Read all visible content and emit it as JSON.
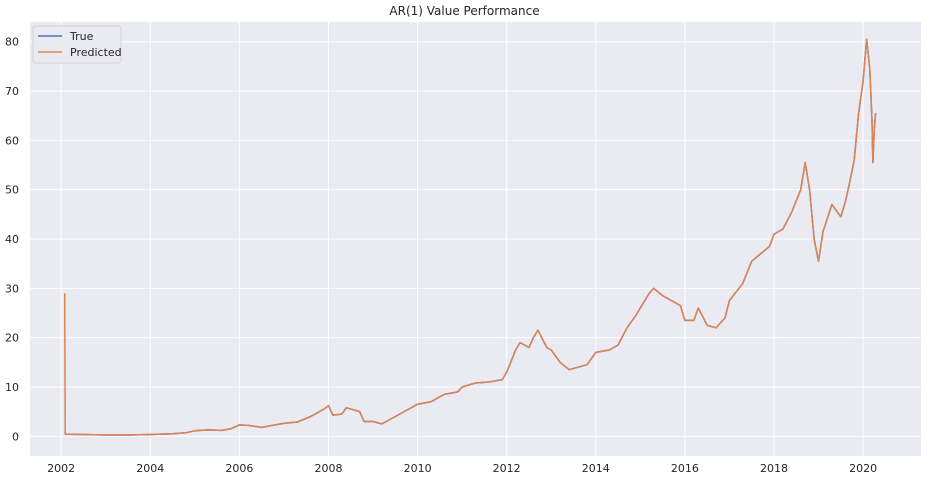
{
  "chart_data": {
    "type": "line",
    "title": "AR(1) Value Performance",
    "xlabel": "",
    "ylabel": "",
    "xlim": [
      2001.3,
      2021.3
    ],
    "ylim": [
      -4,
      84
    ],
    "x_ticks": [
      2002,
      2004,
      2006,
      2008,
      2010,
      2012,
      2014,
      2016,
      2018,
      2020
    ],
    "y_ticks": [
      0,
      10,
      20,
      30,
      40,
      50,
      60,
      70,
      80
    ],
    "grid": true,
    "legend": "top-left",
    "colors": {
      "background": "#eaeaf2",
      "grid": "#ffffff",
      "true": "#4c72b0",
      "predicted": "#dd8452"
    },
    "series": [
      {
        "name": "True",
        "points": [
          [
            2002.08,
            0.4
          ],
          [
            2002.5,
            0.35
          ],
          [
            2003.0,
            0.25
          ],
          [
            2003.5,
            0.25
          ],
          [
            2004.0,
            0.35
          ],
          [
            2004.5,
            0.5
          ],
          [
            2004.8,
            0.7
          ],
          [
            2005.0,
            1.1
          ],
          [
            2005.3,
            1.3
          ],
          [
            2005.6,
            1.2
          ],
          [
            2005.8,
            1.5
          ],
          [
            2006.0,
            2.3
          ],
          [
            2006.2,
            2.2
          ],
          [
            2006.5,
            1.8
          ],
          [
            2006.8,
            2.3
          ],
          [
            2007.0,
            2.6
          ],
          [
            2007.3,
            2.9
          ],
          [
            2007.6,
            4.0
          ],
          [
            2007.9,
            5.5
          ],
          [
            2008.0,
            6.2
          ],
          [
            2008.1,
            4.3
          ],
          [
            2008.3,
            4.5
          ],
          [
            2008.4,
            5.8
          ],
          [
            2008.7,
            5.0
          ],
          [
            2008.8,
            3.0
          ],
          [
            2009.0,
            3.0
          ],
          [
            2009.2,
            2.5
          ],
          [
            2009.5,
            4.0
          ],
          [
            2009.8,
            5.5
          ],
          [
            2010.0,
            6.5
          ],
          [
            2010.3,
            7.0
          ],
          [
            2010.6,
            8.5
          ],
          [
            2010.9,
            9.0
          ],
          [
            2011.0,
            10.0
          ],
          [
            2011.3,
            10.8
          ],
          [
            2011.6,
            11.0
          ],
          [
            2011.9,
            11.5
          ],
          [
            2012.0,
            13.0
          ],
          [
            2012.2,
            17.5
          ],
          [
            2012.3,
            19.0
          ],
          [
            2012.5,
            18.0
          ],
          [
            2012.6,
            20.0
          ],
          [
            2012.7,
            21.5
          ],
          [
            2012.9,
            18.0
          ],
          [
            2013.0,
            17.5
          ],
          [
            2013.2,
            15.0
          ],
          [
            2013.4,
            13.5
          ],
          [
            2013.6,
            14.0
          ],
          [
            2013.8,
            14.5
          ],
          [
            2014.0,
            17.0
          ],
          [
            2014.3,
            17.5
          ],
          [
            2014.5,
            18.5
          ],
          [
            2014.7,
            22.0
          ],
          [
            2014.9,
            24.5
          ],
          [
            2015.0,
            26.0
          ],
          [
            2015.2,
            29.0
          ],
          [
            2015.3,
            30.0
          ],
          [
            2015.5,
            28.5
          ],
          [
            2015.7,
            27.5
          ],
          [
            2015.9,
            26.5
          ],
          [
            2016.0,
            23.5
          ],
          [
            2016.2,
            23.5
          ],
          [
            2016.3,
            26.0
          ],
          [
            2016.5,
            22.5
          ],
          [
            2016.7,
            22.0
          ],
          [
            2016.9,
            24.0
          ],
          [
            2017.0,
            27.5
          ],
          [
            2017.3,
            31.0
          ],
          [
            2017.5,
            35.5
          ],
          [
            2017.7,
            37.0
          ],
          [
            2017.9,
            38.5
          ],
          [
            2018.0,
            41.0
          ],
          [
            2018.2,
            42.0
          ],
          [
            2018.4,
            45.5
          ],
          [
            2018.6,
            50.0
          ],
          [
            2018.7,
            55.5
          ],
          [
            2018.8,
            50.0
          ],
          [
            2018.9,
            40.0
          ],
          [
            2019.0,
            35.5
          ],
          [
            2019.1,
            41.5
          ],
          [
            2019.3,
            47.0
          ],
          [
            2019.5,
            44.5
          ],
          [
            2019.6,
            47.5
          ],
          [
            2019.7,
            51.5
          ],
          [
            2019.8,
            56.0
          ],
          [
            2019.9,
            65.5
          ],
          [
            2020.0,
            72.0
          ],
          [
            2020.08,
            80.5
          ],
          [
            2020.15,
            74.5
          ],
          [
            2020.2,
            64.0
          ],
          [
            2020.22,
            55.5
          ],
          [
            2020.25,
            62.0
          ],
          [
            2020.28,
            65.5
          ]
        ]
      },
      {
        "name": "Predicted",
        "points": [
          [
            2002.08,
            29.0
          ],
          [
            2002.09,
            0.4
          ],
          [
            2002.5,
            0.35
          ],
          [
            2003.0,
            0.25
          ],
          [
            2003.5,
            0.25
          ],
          [
            2004.0,
            0.35
          ],
          [
            2004.5,
            0.5
          ],
          [
            2004.8,
            0.7
          ],
          [
            2005.0,
            1.1
          ],
          [
            2005.3,
            1.3
          ],
          [
            2005.6,
            1.2
          ],
          [
            2005.8,
            1.5
          ],
          [
            2006.0,
            2.3
          ],
          [
            2006.2,
            2.2
          ],
          [
            2006.5,
            1.8
          ],
          [
            2006.8,
            2.3
          ],
          [
            2007.0,
            2.6
          ],
          [
            2007.3,
            2.9
          ],
          [
            2007.6,
            4.0
          ],
          [
            2007.9,
            5.5
          ],
          [
            2008.0,
            6.2
          ],
          [
            2008.1,
            4.3
          ],
          [
            2008.3,
            4.5
          ],
          [
            2008.4,
            5.8
          ],
          [
            2008.7,
            5.0
          ],
          [
            2008.8,
            3.0
          ],
          [
            2009.0,
            3.0
          ],
          [
            2009.2,
            2.5
          ],
          [
            2009.5,
            4.0
          ],
          [
            2009.8,
            5.5
          ],
          [
            2010.0,
            6.5
          ],
          [
            2010.3,
            7.0
          ],
          [
            2010.6,
            8.5
          ],
          [
            2010.9,
            9.0
          ],
          [
            2011.0,
            10.0
          ],
          [
            2011.3,
            10.8
          ],
          [
            2011.6,
            11.0
          ],
          [
            2011.9,
            11.5
          ],
          [
            2012.0,
            13.0
          ],
          [
            2012.2,
            17.5
          ],
          [
            2012.3,
            19.0
          ],
          [
            2012.5,
            18.0
          ],
          [
            2012.6,
            20.0
          ],
          [
            2012.7,
            21.5
          ],
          [
            2012.9,
            18.0
          ],
          [
            2013.0,
            17.5
          ],
          [
            2013.2,
            15.0
          ],
          [
            2013.4,
            13.5
          ],
          [
            2013.6,
            14.0
          ],
          [
            2013.8,
            14.5
          ],
          [
            2014.0,
            17.0
          ],
          [
            2014.3,
            17.5
          ],
          [
            2014.5,
            18.5
          ],
          [
            2014.7,
            22.0
          ],
          [
            2014.9,
            24.5
          ],
          [
            2015.0,
            26.0
          ],
          [
            2015.2,
            29.0
          ],
          [
            2015.3,
            30.0
          ],
          [
            2015.5,
            28.5
          ],
          [
            2015.7,
            27.5
          ],
          [
            2015.9,
            26.5
          ],
          [
            2016.0,
            23.5
          ],
          [
            2016.2,
            23.5
          ],
          [
            2016.3,
            26.0
          ],
          [
            2016.5,
            22.5
          ],
          [
            2016.7,
            22.0
          ],
          [
            2016.9,
            24.0
          ],
          [
            2017.0,
            27.5
          ],
          [
            2017.3,
            31.0
          ],
          [
            2017.5,
            35.5
          ],
          [
            2017.7,
            37.0
          ],
          [
            2017.9,
            38.5
          ],
          [
            2018.0,
            41.0
          ],
          [
            2018.2,
            42.0
          ],
          [
            2018.4,
            45.5
          ],
          [
            2018.6,
            50.0
          ],
          [
            2018.7,
            55.5
          ],
          [
            2018.8,
            50.0
          ],
          [
            2018.9,
            40.0
          ],
          [
            2019.0,
            35.5
          ],
          [
            2019.1,
            41.5
          ],
          [
            2019.3,
            47.0
          ],
          [
            2019.5,
            44.5
          ],
          [
            2019.6,
            47.5
          ],
          [
            2019.7,
            51.5
          ],
          [
            2019.8,
            56.0
          ],
          [
            2019.9,
            65.5
          ],
          [
            2020.0,
            72.0
          ],
          [
            2020.08,
            80.5
          ],
          [
            2020.15,
            74.5
          ],
          [
            2020.2,
            64.0
          ],
          [
            2020.22,
            55.5
          ],
          [
            2020.25,
            62.0
          ],
          [
            2020.28,
            65.5
          ]
        ]
      }
    ]
  }
}
